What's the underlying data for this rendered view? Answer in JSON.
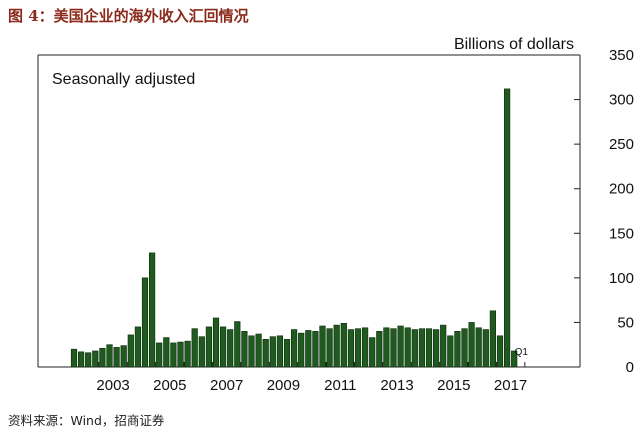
{
  "figure_title": "图 4：美国企业的海外收入汇回情况",
  "source": "资料来源：Wind，招商证券",
  "colors": {
    "bar": "#1f5a1f",
    "bar_edge": "#0c2a0c",
    "title": "#8b2a1a"
  },
  "chart_data": {
    "type": "bar",
    "unit_label": "Billions of dollars",
    "note": "Seasonally adjusted",
    "annotation": {
      "text": "Q1",
      "year": 2018,
      "quarter": 1
    },
    "ylim": [
      0,
      350
    ],
    "y_ticks": [
      0,
      50,
      100,
      150,
      200,
      250,
      300,
      350
    ],
    "x_ticks": [
      "2003",
      "2005",
      "2007",
      "2009",
      "2011",
      "2013",
      "2015",
      "2017"
    ],
    "start": {
      "year": 2002,
      "quarter": 1
    },
    "quarters": [
      "2002Q1",
      "2002Q2",
      "2002Q3",
      "2002Q4",
      "2003Q1",
      "2003Q2",
      "2003Q3",
      "2003Q4",
      "2004Q1",
      "2004Q2",
      "2004Q3",
      "2004Q4",
      "2005Q1",
      "2005Q2",
      "2005Q3",
      "2005Q4",
      "2006Q1",
      "2006Q2",
      "2006Q3",
      "2006Q4",
      "2007Q1",
      "2007Q2",
      "2007Q3",
      "2007Q4",
      "2008Q1",
      "2008Q2",
      "2008Q3",
      "2008Q4",
      "2009Q1",
      "2009Q2",
      "2009Q3",
      "2009Q4",
      "2010Q1",
      "2010Q2",
      "2010Q3",
      "2010Q4",
      "2011Q1",
      "2011Q2",
      "2011Q3",
      "2011Q4",
      "2012Q1",
      "2012Q2",
      "2012Q3",
      "2012Q4",
      "2013Q1",
      "2013Q2",
      "2013Q3",
      "2013Q4",
      "2014Q1",
      "2014Q2",
      "2014Q3",
      "2014Q4",
      "2015Q1",
      "2015Q2",
      "2015Q3",
      "2015Q4",
      "2016Q1",
      "2016Q2",
      "2016Q3",
      "2016Q4",
      "2017Q1",
      "2017Q2",
      "2017Q3",
      "2017Q4",
      "2018Q1",
      "2018Q2"
    ],
    "values": [
      20,
      17,
      16,
      18,
      21,
      25,
      22,
      24,
      36,
      45,
      100,
      128,
      27,
      33,
      27,
      28,
      29,
      43,
      34,
      45,
      55,
      45,
      42,
      51,
      40,
      35,
      37,
      31,
      34,
      35,
      31,
      42,
      38,
      41,
      40,
      46,
      43,
      47,
      49,
      42,
      43,
      44,
      33,
      40,
      44,
      43,
      46,
      44,
      42,
      43,
      43,
      42,
      47,
      35,
      40,
      43,
      50,
      44,
      42,
      63,
      35,
      312,
      18,
      0,
      0,
      0
    ]
  }
}
